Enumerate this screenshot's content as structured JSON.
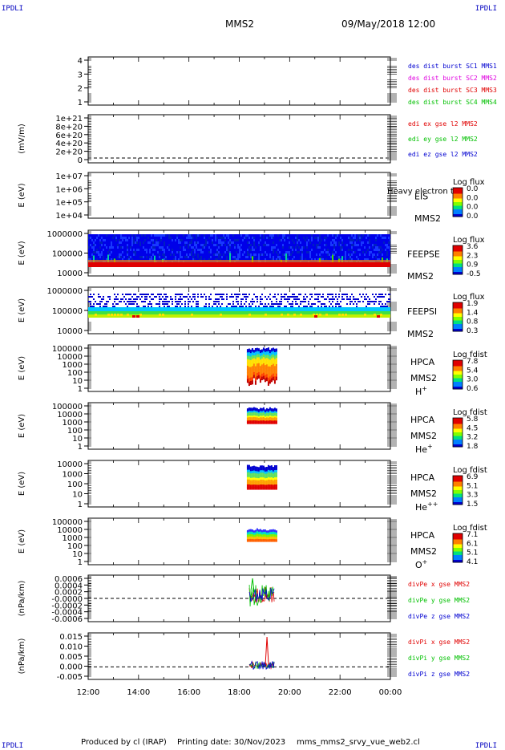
{
  "corners": {
    "tl": "IPDLI",
    "tr": "IPDLI",
    "bl": "IPDLI",
    "br": "IPDLI"
  },
  "header": {
    "mission": "MMS2",
    "datetime": "09/May/2018 12:00"
  },
  "footer": {
    "produced": "Produced by cl (IRAP)",
    "printing": "Printing date: 30/Nov/2023",
    "file": "mms_mms2_srvy_vue_web2.cl"
  },
  "time_axis": {
    "ticks": [
      "12:00",
      "14:00",
      "16:00",
      "18:00",
      "20:00",
      "22:00",
      "00:00"
    ],
    "start_hour": 12,
    "end_hour": 24
  },
  "colors": {
    "red": "#e00000",
    "green": "#00c000",
    "blue": "#0000d0",
    "magenta": "#e000e0"
  },
  "panels": [
    {
      "id": "p1",
      "ylabel": "",
      "yticks": [
        "4",
        "3",
        "2",
        "1"
      ],
      "legend": [
        {
          "text": "des dist burst SC1 MMS1",
          "color": "#0000d0"
        },
        {
          "text": "des dist burst SC2 MMS2",
          "color": "#e000e0"
        },
        {
          "text": "des dist burst SC3 MMS3",
          "color": "#e00000"
        },
        {
          "text": "des dist burst SC4 MMS4",
          "color": "#00c000"
        }
      ]
    },
    {
      "id": "p2",
      "ylabel": "(mV/m)",
      "yticks": [
        "1e+21",
        "8e+20",
        "6e+20",
        "4e+20",
        "2e+20",
        "0"
      ],
      "legend": [
        {
          "text": "edi ex gse l2 MMS2",
          "color": "#e00000"
        },
        {
          "text": "edi ey gse l2 MMS2",
          "color": "#00c000"
        },
        {
          "text": "edi ez gse l2 MMS2",
          "color": "#0000d0"
        }
      ]
    },
    {
      "id": "p3",
      "ylabel": "E (eV)",
      "yticks": [
        "1e+07",
        "1e+06",
        "1e+05",
        "1e+04"
      ],
      "instrument": "EIS",
      "sc": "MMS2",
      "overlay": "Heavy electron to",
      "cbar_title": "Log flux",
      "cbar_ticks": [
        "0.0",
        "0.0",
        "0.0",
        "0.0"
      ]
    },
    {
      "id": "p4",
      "ylabel": "E (eV)",
      "yticks": [
        "1000000",
        "100000",
        "10000"
      ],
      "instrument": "FEEPSE",
      "sc": "MMS2",
      "cbar_title": "Log flux",
      "cbar_ticks": [
        "3.6",
        "2.3",
        "0.9",
        "-0.5"
      ]
    },
    {
      "id": "p5",
      "ylabel": "E (eV)",
      "yticks": [
        "1000000",
        "100000",
        "10000"
      ],
      "instrument": "FEEPSI",
      "sc": "MMS2",
      "cbar_title": "Log flux",
      "cbar_ticks": [
        "1.9",
        "1.4",
        "0.8",
        "0.3"
      ]
    },
    {
      "id": "p6",
      "ylabel": "E (eV)",
      "yticks": [
        "100000",
        "10000",
        "1000",
        "100",
        "10",
        "1"
      ],
      "instrument": "HPCA",
      "sc": "MMS2",
      "species": "H",
      "species_sup": "+",
      "cbar_title": "Log fdist",
      "cbar_ticks": [
        "7.8",
        "5.4",
        "3.0",
        "0.6"
      ]
    },
    {
      "id": "p7",
      "ylabel": "E (eV)",
      "yticks": [
        "100000",
        "10000",
        "1000",
        "100",
        "10",
        "1"
      ],
      "instrument": "HPCA",
      "sc": "MMS2",
      "species": "He",
      "species_sup": "+",
      "cbar_title": "Log fdist",
      "cbar_ticks": [
        "5.8",
        "4.5",
        "3.2",
        "1.8"
      ]
    },
    {
      "id": "p8",
      "ylabel": "E (eV)",
      "yticks": [
        "10000",
        "1000",
        "100",
        "10",
        "1"
      ],
      "instrument": "HPCA",
      "sc": "MMS2",
      "species": "He",
      "species_sup": "++",
      "cbar_title": "Log fdist",
      "cbar_ticks": [
        "6.9",
        "5.1",
        "3.3",
        "1.5"
      ]
    },
    {
      "id": "p9",
      "ylabel": "E (eV)",
      "yticks": [
        "100000",
        "10000",
        "1000",
        "100",
        "10",
        "1"
      ],
      "instrument": "HPCA",
      "sc": "MMS2",
      "species": "O",
      "species_sup": "+",
      "cbar_title": "Log fdist",
      "cbar_ticks": [
        "7.1",
        "6.1",
        "5.1",
        "4.1"
      ]
    },
    {
      "id": "p10",
      "ylabel": "(nPa/km)",
      "yticks": [
        "0.0006",
        "0.0004",
        "0.0002",
        "-0.0000",
        "-0.0002",
        "-0.0004",
        "-0.0006"
      ],
      "legend": [
        {
          "text": "divPe x gse MMS2",
          "color": "#e00000"
        },
        {
          "text": "divPe y gse MMS2",
          "color": "#00c000"
        },
        {
          "text": "divPe z gse MMS2",
          "color": "#0000d0"
        }
      ]
    },
    {
      "id": "p11",
      "ylabel": "(nPa/km)",
      "yticks": [
        "0.015",
        "0.010",
        "0.005",
        "0.000",
        "-0.005"
      ],
      "legend": [
        {
          "text": "divPi x gse MMS2",
          "color": "#e00000"
        },
        {
          "text": "divPi y gse MMS2",
          "color": "#00c000"
        },
        {
          "text": "divPi z gse MMS2",
          "color": "#0000d0"
        }
      ]
    }
  ],
  "chart_data": [
    {
      "type": "line",
      "panel": "p2",
      "xlabel": "",
      "ylabel": "(mV/m)",
      "ylim": [
        0,
        1e+21
      ],
      "note_values": "dashed zero line",
      "x_hours": [
        12,
        24
      ],
      "series": [
        {
          "name": "edi ex gse l2 MMS2",
          "values": []
        },
        {
          "name": "edi ey gse l2 MMS2",
          "values": []
        },
        {
          "name": "edi ez gse l2 MMS2",
          "values": []
        }
      ]
    },
    {
      "type": "heatmap",
      "panel": "p4",
      "title": "FEEPSE",
      "ylim": [
        10000,
        1000000
      ],
      "active_hours": [
        12,
        24
      ]
    },
    {
      "type": "heatmap",
      "panel": "p5",
      "title": "FEEPSI",
      "ylim": [
        10000,
        1000000
      ],
      "active_hours": [
        12,
        24
      ]
    },
    {
      "type": "heatmap",
      "panel": "p6",
      "title": "HPCA H+",
      "ylim": [
        1,
        100000
      ],
      "active_hours": [
        18.3,
        19.5
      ]
    },
    {
      "type": "heatmap",
      "panel": "p7",
      "title": "HPCA He+",
      "ylim": [
        1,
        100000
      ],
      "active_hours": [
        18.3,
        19.5
      ]
    },
    {
      "type": "heatmap",
      "panel": "p8",
      "title": "HPCA He++",
      "ylim": [
        1,
        10000
      ],
      "active_hours": [
        18.3,
        19.5
      ]
    },
    {
      "type": "heatmap",
      "panel": "p9",
      "title": "HPCA O+",
      "ylim": [
        1,
        100000
      ],
      "active_hours": [
        18.3,
        19.5
      ]
    },
    {
      "type": "line",
      "panel": "p10",
      "ylim": [
        -0.0007,
        0.0007
      ],
      "active_hours": [
        18.4,
        19.4
      ]
    },
    {
      "type": "line",
      "panel": "p11",
      "ylim": [
        -0.007,
        0.018
      ],
      "active_hours": [
        18.4,
        19.4
      ],
      "series": [
        {
          "name": "divPi x gse MMS2",
          "peak": 0.016,
          "peak_hour": 19.1
        }
      ]
    }
  ]
}
